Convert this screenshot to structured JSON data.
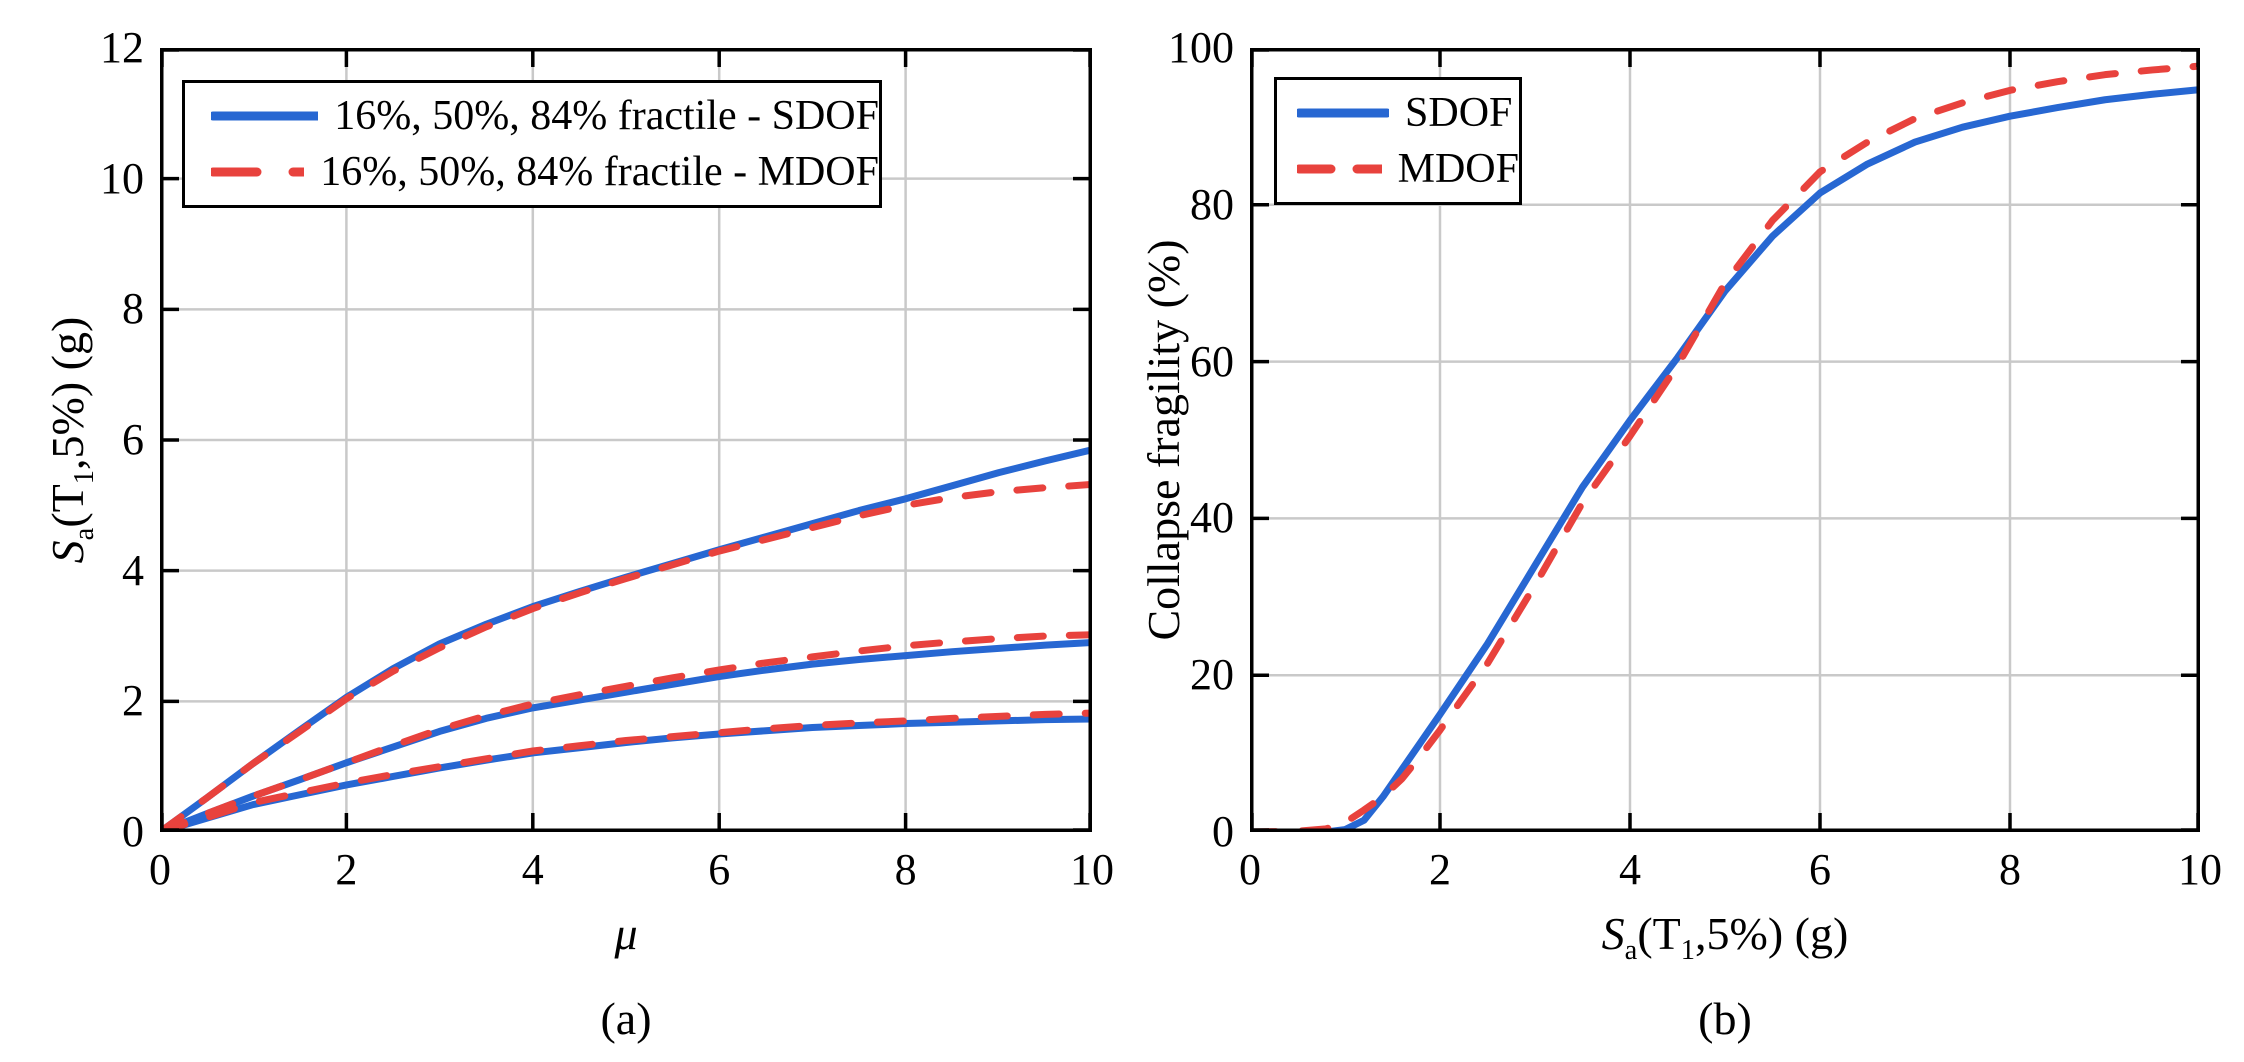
{
  "colors": {
    "sdof_blue": "#2767d2",
    "mdof_red": "#e8423d",
    "grid": "#c9c9c9",
    "axis": "#000000",
    "background": "#ffffff"
  },
  "captions": {
    "a": "(a)",
    "b": "(b)"
  },
  "chart_data": [
    {
      "type": "line",
      "title": "",
      "xlabel": "μ",
      "xlabel_parts": [
        {
          "t": "μ",
          "style": "italic"
        }
      ],
      "ylabel": "Sa(T1,5%) (g)",
      "ylabel_parts": [
        {
          "t": "S",
          "style": "italic"
        },
        {
          "t": "a",
          "style": "sub"
        },
        {
          "t": "(T"
        },
        {
          "t": "1",
          "style": "sub"
        },
        {
          "t": ",5%) (g)"
        }
      ],
      "xlim": [
        0,
        10
      ],
      "ylim": [
        0,
        12
      ],
      "x_ticks": [
        0,
        2,
        4,
        6,
        8,
        10
      ],
      "x_tick_labels": [
        "0",
        "2",
        "4",
        "6",
        "8",
        "10"
      ],
      "y_ticks": [
        0,
        2,
        4,
        6,
        8,
        10,
        12
      ],
      "y_tick_labels": [
        "0",
        "2",
        "4",
        "6",
        "8",
        "10",
        "12"
      ],
      "grid": true,
      "legend": {
        "position": "top-left",
        "entries": [
          {
            "label": "16%, 50%, 84% fractile - SDOF",
            "style": "solid",
            "color_key": "sdof_blue"
          },
          {
            "label": "16%, 50%, 84% fractile - MDOF",
            "style": "dashed",
            "color_key": "mdof_red"
          }
        ]
      },
      "x": [
        0,
        0.5,
        1,
        1.5,
        2,
        2.5,
        3,
        3.5,
        4,
        4.5,
        5,
        5.5,
        6,
        6.5,
        7,
        7.5,
        8,
        8.5,
        9,
        9.5,
        10
      ],
      "series": [
        {
          "name": "16% fractile - SDOF",
          "style": "solid",
          "color_key": "sdof_blue",
          "values": [
            0,
            0.21,
            0.42,
            0.57,
            0.72,
            0.85,
            0.98,
            1.1,
            1.21,
            1.29,
            1.37,
            1.44,
            1.5,
            1.55,
            1.6,
            1.63,
            1.66,
            1.68,
            1.7,
            1.72,
            1.73
          ]
        },
        {
          "name": "50% fractile - SDOF",
          "style": "solid",
          "color_key": "sdof_blue",
          "values": [
            0,
            0.28,
            0.55,
            0.8,
            1.06,
            1.3,
            1.54,
            1.74,
            1.9,
            2.02,
            2.14,
            2.26,
            2.38,
            2.48,
            2.57,
            2.64,
            2.7,
            2.76,
            2.81,
            2.86,
            2.9
          ]
        },
        {
          "name": "84% fractile - SDOF",
          "style": "solid",
          "color_key": "sdof_blue",
          "values": [
            0,
            0.52,
            1.05,
            1.56,
            2.06,
            2.5,
            2.88,
            3.18,
            3.45,
            3.68,
            3.9,
            4.11,
            4.32,
            4.52,
            4.72,
            4.92,
            5.1,
            5.3,
            5.5,
            5.68,
            5.85
          ]
        },
        {
          "name": "16% fractile - MDOF",
          "style": "dashed",
          "color_key": "mdof_red",
          "values": [
            0,
            0.22,
            0.45,
            0.6,
            0.75,
            0.88,
            1.0,
            1.12,
            1.24,
            1.32,
            1.4,
            1.46,
            1.52,
            1.58,
            1.63,
            1.67,
            1.7,
            1.74,
            1.77,
            1.8,
            1.82
          ]
        },
        {
          "name": "50% fractile - MDOF",
          "style": "dashed",
          "color_key": "mdof_red",
          "values": [
            0,
            0.28,
            0.55,
            0.8,
            1.06,
            1.32,
            1.57,
            1.78,
            1.96,
            2.1,
            2.23,
            2.36,
            2.48,
            2.59,
            2.68,
            2.77,
            2.85,
            2.91,
            2.96,
            3.0,
            3.02
          ]
        },
        {
          "name": "84% fractile - MDOF",
          "style": "dashed",
          "color_key": "mdof_red",
          "values": [
            0,
            0.52,
            1.05,
            1.54,
            2.04,
            2.46,
            2.82,
            3.14,
            3.42,
            3.66,
            3.88,
            4.09,
            4.3,
            4.48,
            4.66,
            4.84,
            5.0,
            5.12,
            5.21,
            5.27,
            5.32
          ]
        }
      ]
    },
    {
      "type": "line",
      "title": "",
      "xlabel": "Sa(T1,5%) (g)",
      "xlabel_parts": [
        {
          "t": "S",
          "style": "italic"
        },
        {
          "t": "a",
          "style": "sub"
        },
        {
          "t": "(T"
        },
        {
          "t": "1",
          "style": "sub"
        },
        {
          "t": ",5%) (g)"
        }
      ],
      "ylabel": "Collapse fragility (%)",
      "ylabel_parts": [
        {
          "t": "Collapse fragility (%)"
        }
      ],
      "xlim": [
        0,
        10
      ],
      "ylim": [
        0,
        100
      ],
      "x_ticks": [
        0,
        2,
        4,
        6,
        8,
        10
      ],
      "x_tick_labels": [
        "0",
        "2",
        "4",
        "6",
        "8",
        "10"
      ],
      "y_ticks": [
        0,
        20,
        40,
        60,
        80,
        100
      ],
      "y_tick_labels": [
        "0",
        "20",
        "40",
        "60",
        "80",
        "100"
      ],
      "grid": true,
      "legend": {
        "position": "top-left",
        "entries": [
          {
            "label": "SDOF",
            "style": "solid",
            "color_key": "sdof_blue"
          },
          {
            "label": "MDOF",
            "style": "dashed",
            "color_key": "mdof_red"
          }
        ]
      },
      "x": [
        0,
        0.5,
        0.8,
        1.0,
        1.2,
        1.4,
        1.6,
        1.8,
        2.0,
        2.5,
        3.0,
        3.5,
        4.0,
        4.5,
        5.0,
        5.5,
        6.0,
        6.5,
        7.0,
        7.5,
        8.0,
        8.5,
        9.0,
        9.5,
        10.0
      ],
      "series": [
        {
          "name": "SDOF",
          "style": "solid",
          "color_key": "sdof_blue",
          "values": [
            0,
            0,
            0,
            0.3,
            1.5,
            4.5,
            8,
            11.5,
            15,
            24,
            34,
            44,
            52.5,
            60.5,
            69,
            76,
            81.5,
            85.2,
            88,
            89.9,
            91.3,
            92.4,
            93.4,
            94.1,
            94.7
          ]
        },
        {
          "name": "MDOF",
          "style": "dashed",
          "color_key": "mdof_red",
          "values": [
            0,
            0.1,
            0.4,
            1.2,
            2.8,
            4.5,
            6.8,
            9.8,
            13,
            21.5,
            31.5,
            42,
            50.5,
            59.5,
            70,
            78,
            84.2,
            88,
            91,
            93,
            94.6,
            95.7,
            96.6,
            97.2,
            97.7
          ]
        }
      ]
    }
  ]
}
